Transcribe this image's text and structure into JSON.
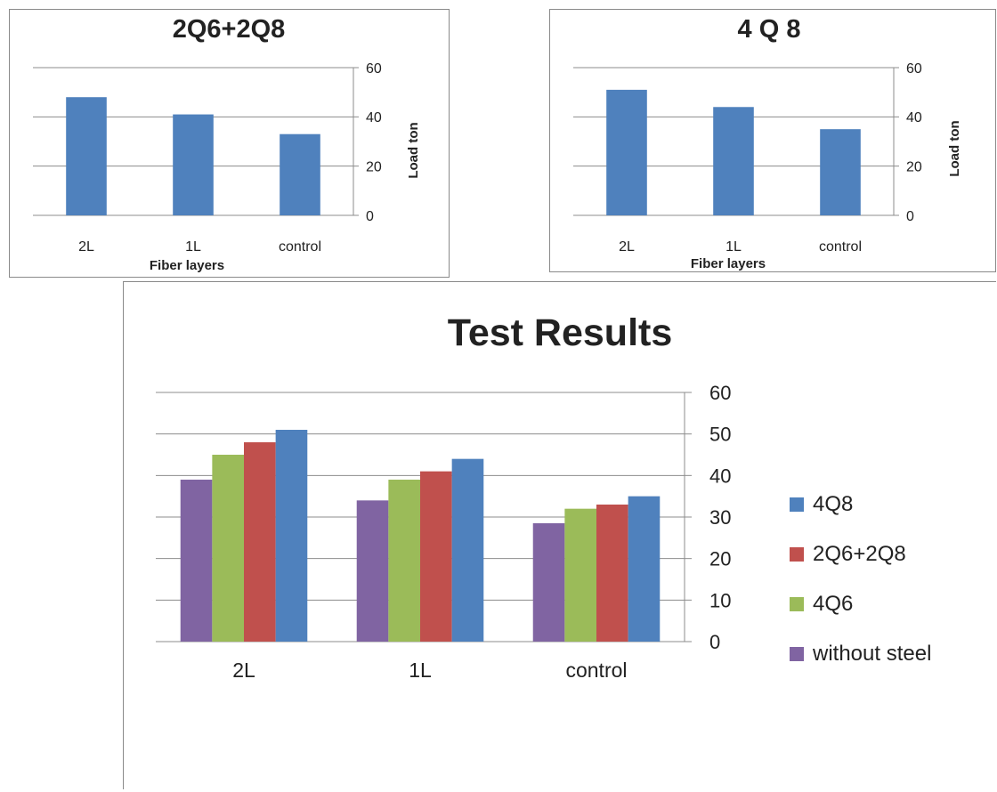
{
  "chart_data": [
    {
      "type": "bar",
      "title": "2Q6+2Q8",
      "xlabel": "Fiber layers",
      "ylabel": "Load ton",
      "categories": [
        "2L",
        "1L",
        "control"
      ],
      "values": [
        48,
        41,
        33
      ],
      "ylim": [
        0,
        60
      ],
      "yticks": [
        0,
        20,
        40,
        60
      ],
      "y_axis_side": "right",
      "grid": true,
      "color": "#4f81bd"
    },
    {
      "type": "bar",
      "title": "4 Q 8",
      "xlabel": "Fiber layers",
      "ylabel": "Load ton",
      "categories": [
        "2L",
        "1L",
        "control"
      ],
      "values": [
        51,
        44,
        35
      ],
      "ylim": [
        0,
        60
      ],
      "yticks": [
        0,
        20,
        40,
        60
      ],
      "y_axis_side": "right",
      "grid": true,
      "color": "#4f81bd"
    },
    {
      "type": "bar",
      "title": "Test Results",
      "categories": [
        "2L",
        "1L",
        "control"
      ],
      "series": [
        {
          "name": "without steel",
          "values": [
            39,
            34,
            28.5
          ],
          "color": "#8064a2"
        },
        {
          "name": "4Q6",
          "values": [
            45,
            39,
            32
          ],
          "color": "#9bbb59"
        },
        {
          "name": "2Q6+2Q8",
          "values": [
            48,
            41,
            33
          ],
          "color": "#c0504d"
        },
        {
          "name": "4Q8",
          "values": [
            51,
            44,
            35
          ],
          "color": "#4f81bd"
        }
      ],
      "legend_order": [
        "4Q8",
        "2Q6+2Q8",
        "4Q6",
        "without steel"
      ],
      "legend_position": "right",
      "ylim": [
        0,
        60
      ],
      "yticks": [
        0,
        10,
        20,
        30,
        40,
        50,
        60
      ],
      "y_axis_side": "right",
      "grid": true
    }
  ]
}
